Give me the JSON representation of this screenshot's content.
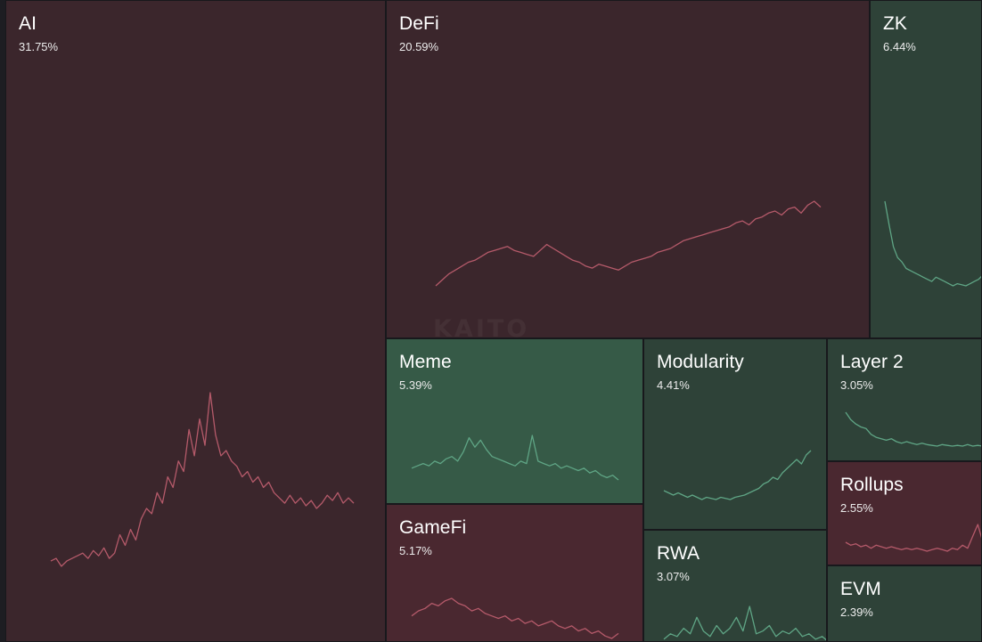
{
  "watermark_text": "KAITO",
  "colors": {
    "negative_tile": "#3b262c",
    "negative_tile_strong": "#4a2830",
    "positive_tile": "#2e4238",
    "positive_tile_strong": "#365a47",
    "negative_line": "#b55a6a",
    "positive_line": "#5fa585"
  },
  "chart_data": {
    "type": "treemap",
    "title": "",
    "unit": "%",
    "items": [
      {
        "name": "AI",
        "label": "31.75%",
        "value": 31.75,
        "trend": "negative",
        "sparkline": [
          8,
          9,
          6,
          8,
          9,
          10,
          11,
          9,
          12,
          10,
          13,
          9,
          11,
          18,
          14,
          20,
          16,
          24,
          28,
          26,
          34,
          30,
          40,
          36,
          46,
          42,
          58,
          48,
          62,
          52,
          72,
          56,
          48,
          50,
          46,
          44,
          40,
          42,
          38,
          40,
          36,
          38,
          34,
          32,
          30,
          33,
          30,
          32,
          29,
          31,
          28,
          30,
          33,
          31,
          34,
          30,
          32,
          30
        ]
      },
      {
        "name": "DeFi",
        "label": "20.59%",
        "value": 20.59,
        "trend": "negative",
        "sparkline": [
          10,
          16,
          22,
          26,
          30,
          34,
          36,
          40,
          44,
          46,
          48,
          50,
          46,
          44,
          42,
          40,
          46,
          52,
          48,
          44,
          40,
          36,
          34,
          30,
          28,
          32,
          30,
          28,
          26,
          30,
          34,
          36,
          38,
          40,
          44,
          46,
          48,
          52,
          56,
          58,
          60,
          62,
          64,
          66,
          68,
          70,
          74,
          76,
          72,
          78,
          80,
          84,
          86,
          82,
          88,
          90,
          84,
          92,
          96,
          90
        ]
      },
      {
        "name": "ZK",
        "label": "6.44%",
        "value": 6.44,
        "trend": "positive",
        "sparkline": [
          92,
          70,
          50,
          40,
          36,
          30,
          28,
          26,
          24,
          22,
          20,
          18,
          22,
          20,
          18,
          16,
          14,
          16,
          15,
          14,
          16,
          18,
          20,
          24
        ]
      },
      {
        "name": "Meme",
        "label": "5.39%",
        "value": 5.39,
        "trend": "positive",
        "sparkline": [
          20,
          22,
          24,
          22,
          26,
          24,
          28,
          30,
          26,
          34,
          46,
          38,
          44,
          36,
          30,
          28,
          26,
          24,
          22,
          26,
          24,
          48,
          26,
          24,
          22,
          24,
          20,
          22,
          20,
          18,
          20,
          16,
          18,
          14,
          12,
          14,
          10
        ]
      },
      {
        "name": "Modularity",
        "label": "4.41%",
        "value": 4.41,
        "trend": "positive",
        "sparkline": [
          20,
          18,
          16,
          18,
          16,
          14,
          16,
          14,
          12,
          14,
          13,
          12,
          14,
          13,
          12,
          14,
          15,
          16,
          18,
          20,
          22,
          26,
          28,
          32,
          30,
          36,
          40,
          44,
          48,
          44,
          52,
          56
        ]
      },
      {
        "name": "Layer 2",
        "label": "3.05%",
        "value": 3.05,
        "trend": "positive",
        "sparkline": [
          60,
          50,
          44,
          40,
          38,
          30,
          26,
          24,
          22,
          24,
          20,
          18,
          20,
          18,
          16,
          18,
          16,
          15,
          14,
          16,
          15,
          14,
          15,
          14,
          16,
          14,
          15,
          14
        ]
      },
      {
        "name": "GameFi",
        "label": "5.17%",
        "value": 5.17,
        "trend": "negative",
        "sparkline": [
          30,
          34,
          36,
          40,
          38,
          42,
          44,
          40,
          38,
          34,
          36,
          32,
          30,
          28,
          30,
          26,
          28,
          24,
          26,
          22,
          24,
          26,
          22,
          20,
          22,
          18,
          20,
          16,
          18,
          14,
          12,
          16
        ]
      },
      {
        "name": "Rollups",
        "label": "2.55%",
        "value": 2.55,
        "trend": "negative",
        "sparkline": [
          18,
          16,
          17,
          15,
          16,
          14,
          16,
          15,
          14,
          15,
          14,
          13,
          14,
          13,
          14,
          13,
          12,
          13,
          14,
          13,
          12,
          14,
          13,
          16,
          14,
          22,
          30,
          18
        ]
      },
      {
        "name": "RWA",
        "label": "3.07%",
        "value": 3.07,
        "trend": "positive",
        "sparkline": [
          14,
          18,
          16,
          22,
          18,
          30,
          20,
          16,
          24,
          18,
          22,
          30,
          20,
          38,
          18,
          20,
          24,
          16,
          20,
          18,
          22,
          16,
          18,
          14,
          16,
          12
        ]
      },
      {
        "name": "EVM",
        "label": "2.39%",
        "value": 2.39,
        "trend": "positive",
        "sparkline": []
      }
    ]
  }
}
